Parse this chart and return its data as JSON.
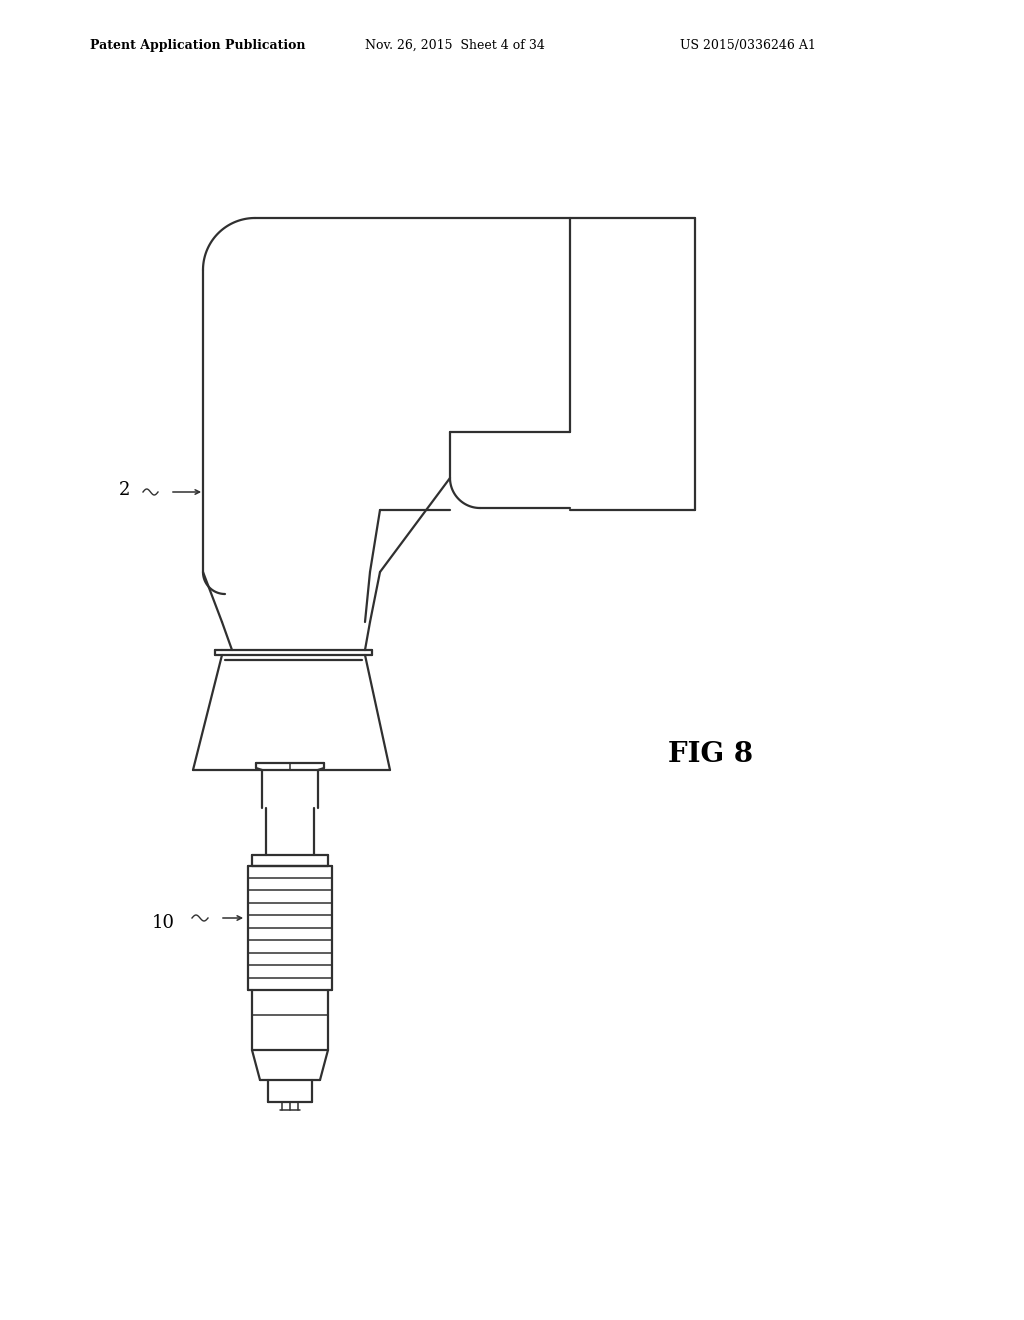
{
  "bg_color": "#ffffff",
  "line_color": "#303030",
  "header_left": "Patent Application Publication",
  "header_center": "Nov. 26, 2015  Sheet 4 of 34",
  "header_right": "US 2015/0336246 A1",
  "fig_label": "FIG 8",
  "label_2": "2",
  "label_10": "10",
  "figsize": [
    10.24,
    13.2
  ],
  "dpi": 100,
  "lw_main": 1.6,
  "lw_thin": 1.1
}
